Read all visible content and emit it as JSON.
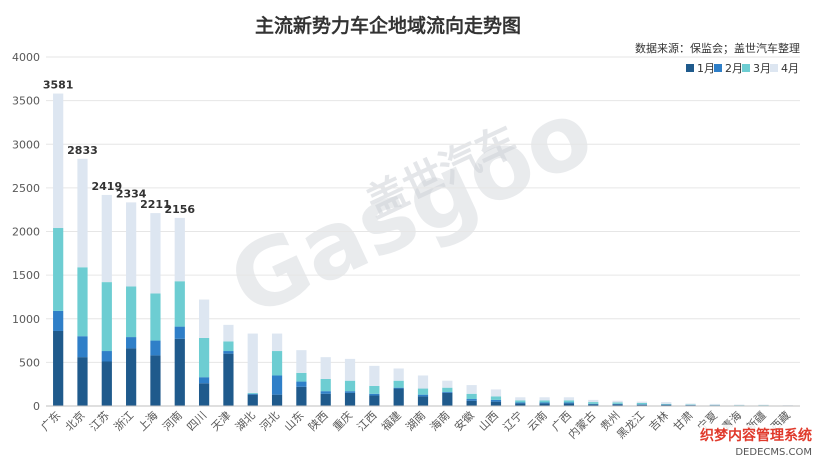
{
  "title": "主流新势力车企地域流向走势图",
  "source": "数据来源：保监会；盖世汽车整理",
  "watermark": {
    "cn": "盖世汽车",
    "en": "Gasgoo"
  },
  "watermark2": {
    "line1": "织梦内容管理系统",
    "line2": "DEDECMS.COM"
  },
  "colors": {
    "m1": "#1f5a8c",
    "m2": "#2f7fc8",
    "m3": "#6dcdd2",
    "m4": "#dde6f1"
  },
  "chart_data": {
    "type": "bar",
    "stacked": true,
    "title": "主流新势力车企地域流向走势图",
    "ylim": [
      0,
      4000
    ],
    "yticks": [
      0,
      500,
      1000,
      1500,
      2000,
      2500,
      3000,
      3500,
      4000
    ],
    "legend_position": "top-right",
    "categories": [
      "广东",
      "北京",
      "江苏",
      "浙江",
      "上海",
      "河南",
      "四川",
      "天津",
      "湖北",
      "河北",
      "山东",
      "陕西",
      "重庆",
      "江西",
      "福建",
      "湖南",
      "海南",
      "安徽",
      "山西",
      "辽宁",
      "云南",
      "广西",
      "内蒙古",
      "贵州",
      "黑龙江",
      "吉林",
      "甘肃",
      "宁夏",
      "青海",
      "新疆",
      "西藏"
    ],
    "series": [
      {
        "name": "1月",
        "values": [
          860,
          560,
          510,
          660,
          580,
          770,
          260,
          600,
          130,
          130,
          220,
          140,
          150,
          120,
          200,
          110,
          150,
          60,
          50,
          30,
          30,
          30,
          20,
          20,
          15,
          15,
          10,
          8,
          5,
          5,
          3
        ]
      },
      {
        "name": "2月",
        "values": [
          230,
          240,
          120,
          130,
          170,
          140,
          70,
          30,
          10,
          220,
          60,
          30,
          20,
          20,
          10,
          20,
          10,
          20,
          20,
          10,
          10,
          10,
          5,
          5,
          5,
          3,
          3,
          2,
          2,
          2,
          1
        ]
      },
      {
        "name": "3月",
        "values": [
          950,
          790,
          790,
          580,
          540,
          520,
          450,
          110,
          10,
          280,
          100,
          140,
          120,
          90,
          80,
          70,
          50,
          60,
          40,
          25,
          25,
          25,
          20,
          15,
          15,
          7,
          5,
          4,
          3,
          3,
          2
        ]
      },
      {
        "name": "4月",
        "values": [
          1541,
          1243,
          999,
          964,
          921,
          726,
          440,
          190,
          680,
          200,
          260,
          250,
          250,
          230,
          140,
          150,
          80,
          100,
          80,
          35,
          35,
          35,
          25,
          20,
          15,
          20,
          10,
          10,
          6,
          5,
          4
        ]
      }
    ],
    "totals_labeled": [
      {
        "category": "广东",
        "total": "3581"
      },
      {
        "category": "北京",
        "total": "2833"
      },
      {
        "category": "江苏",
        "total": "2419"
      },
      {
        "category": "浙江",
        "total": "2334"
      },
      {
        "category": "上海",
        "total": "2211"
      },
      {
        "category": "河南",
        "total": "2156"
      }
    ]
  }
}
